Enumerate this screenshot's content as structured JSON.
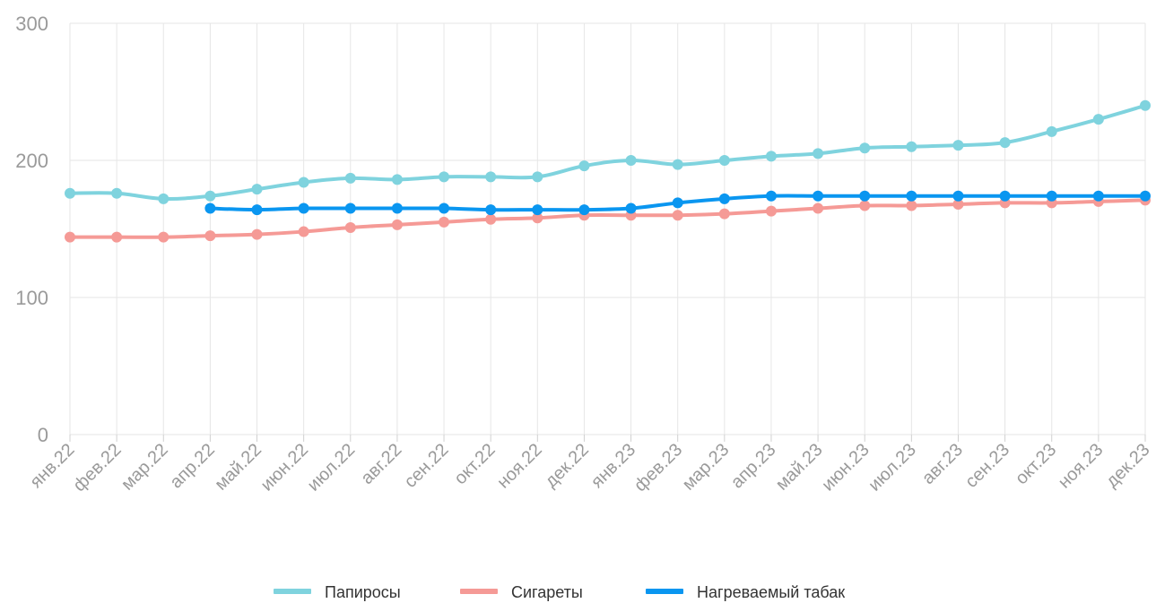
{
  "chart_data": {
    "type": "line",
    "title": "",
    "xlabel": "",
    "ylabel": "",
    "ylim": [
      0,
      300
    ],
    "yticks": [
      "0",
      "100",
      "200",
      "300"
    ],
    "grid": true,
    "legend_position": "bottom",
    "categories": [
      "янв.22",
      "фев.22",
      "мар.22",
      "апр.22",
      "май.22",
      "июн.22",
      "июл.22",
      "авг.22",
      "сен.22",
      "окт.22",
      "ноя.22",
      "дек.22",
      "янв.23",
      "фев.23",
      "мар.23",
      "апр.23",
      "май.23",
      "июн.23",
      "июл.23",
      "авг.23",
      "сен.23",
      "окт.23",
      "ноя.23",
      "дек.23"
    ],
    "series": [
      {
        "name": "Папиросы",
        "color": "#7fd3de",
        "values": [
          176,
          176,
          172,
          174,
          179,
          184,
          187,
          186,
          188,
          188,
          188,
          196,
          200,
          197,
          200,
          203,
          205,
          209,
          210,
          211,
          213,
          221,
          230,
          240
        ]
      },
      {
        "name": "Сигареты",
        "color": "#f59a96",
        "values": [
          144,
          144,
          144,
          145,
          146,
          148,
          151,
          153,
          155,
          157,
          158,
          160,
          160,
          160,
          161,
          163,
          165,
          167,
          167,
          168,
          169,
          169,
          170,
          171
        ]
      },
      {
        "name": "Нагреваемый табак",
        "color": "#0a96f0",
        "values": [
          null,
          null,
          null,
          165,
          164,
          165,
          165,
          165,
          165,
          164,
          164,
          164,
          165,
          169,
          172,
          174,
          174,
          174,
          174,
          174,
          174,
          174,
          174,
          174
        ]
      }
    ]
  }
}
